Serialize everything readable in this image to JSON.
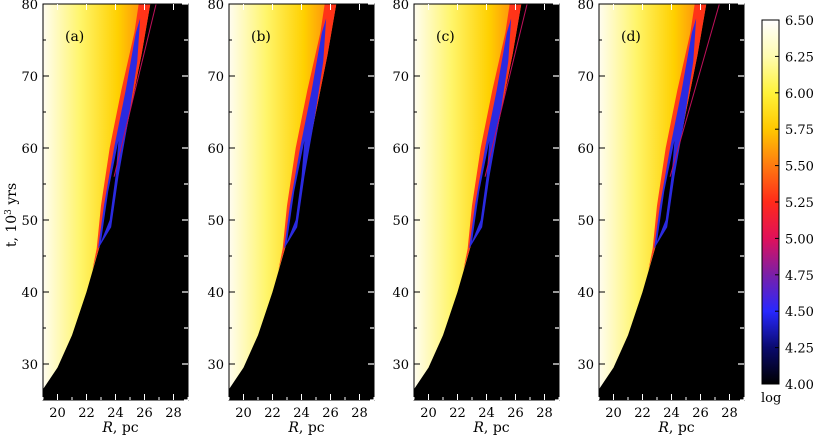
{
  "chart_data": {
    "type": "heatmap",
    "panels": [
      {
        "label": "(a)",
        "extra_lines": 1
      },
      {
        "label": "(b)",
        "extra_lines": 0
      },
      {
        "label": "(c)",
        "extra_lines": 1
      },
      {
        "label": "(d)",
        "extra_lines": 1
      }
    ],
    "xlabel_italic": "R",
    "xlabel_rest": ", pc",
    "ylabel_base": "t, 10",
    "ylabel_sup": "3",
    "ylabel_unit": " yrs",
    "xlim": [
      19,
      29
    ],
    "ylim": [
      25,
      80
    ],
    "xticks": [
      20,
      22,
      24,
      26,
      28
    ],
    "yticks": [
      30,
      40,
      50,
      60,
      70,
      80
    ],
    "colorbar": {
      "range": [
        4.0,
        6.5
      ],
      "ticks": [
        "4.00",
        "4.25",
        "4.50",
        "4.75",
        "5.00",
        "5.25",
        "5.50",
        "5.75",
        "6.00",
        "6.25",
        "6.50"
      ],
      "label": "log",
      "colors": [
        "#000000",
        "#0a0a6e",
        "#2828ff",
        "#7a1fa8",
        "#e0105a",
        "#ff2a1a",
        "#ff7a10",
        "#ffc800",
        "#fff23a",
        "#fffcb0",
        "#ffffff"
      ]
    }
  }
}
